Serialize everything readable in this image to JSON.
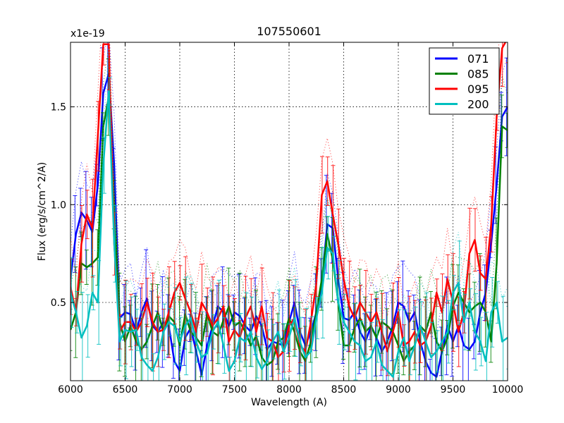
{
  "chart_data": {
    "type": "line",
    "title": "107550601",
    "xlabel": "Wavelength (A)",
    "ylabel": "Flux (erg/s/cm^2/A)",
    "y_scale_label": "x1e-19",
    "xlim": [
      6000,
      10000
    ],
    "ylim": [
      0.1,
      1.83
    ],
    "x_ticks": [
      6000,
      6500,
      7000,
      7500,
      8000,
      8500,
      9000,
      9500,
      10000
    ],
    "x_tick_labels": [
      "6000",
      "6500",
      "7000",
      "7500",
      "8000",
      "8500",
      "9000",
      "9500",
      "10000"
    ],
    "y_ticks": [
      0.5,
      1.0,
      1.5
    ],
    "y_tick_labels": [
      "0.5",
      "1.0",
      "1.5"
    ],
    "grid": true,
    "legend_position": "top-right",
    "x": [
      6000,
      6050,
      6100,
      6150,
      6200,
      6250,
      6300,
      6350,
      6400,
      6450,
      6500,
      6550,
      6600,
      6650,
      6700,
      6750,
      6800,
      6850,
      6900,
      6950,
      7000,
      7050,
      7100,
      7150,
      7200,
      7250,
      7300,
      7350,
      7400,
      7450,
      7500,
      7550,
      7600,
      7650,
      7700,
      7750,
      7800,
      7850,
      7900,
      7950,
      8000,
      8050,
      8100,
      8150,
      8200,
      8250,
      8300,
      8350,
      8400,
      8450,
      8500,
      8550,
      8600,
      8650,
      8700,
      8750,
      8800,
      8850,
      8900,
      8950,
      9000,
      9050,
      9100,
      9150,
      9200,
      9250,
      9300,
      9350,
      9400,
      9450,
      9500,
      9550,
      9600,
      9650,
      9700,
      9750,
      9800,
      9850,
      9900,
      9950,
      10000
    ],
    "series": [
      {
        "name": "071",
        "color": "#0000ff",
        "values": [
          0.62,
          0.85,
          0.96,
          0.92,
          0.86,
          1.1,
          1.57,
          1.67,
          1.2,
          0.42,
          0.45,
          0.44,
          0.35,
          0.45,
          0.52,
          0.38,
          0.35,
          0.4,
          0.38,
          0.2,
          0.15,
          0.32,
          0.37,
          0.25,
          0.13,
          0.28,
          0.38,
          0.48,
          0.45,
          0.38,
          0.45,
          0.43,
          0.38,
          0.35,
          0.43,
          0.38,
          0.26,
          0.3,
          0.29,
          0.28,
          0.4,
          0.5,
          0.35,
          0.28,
          0.35,
          0.45,
          0.6,
          0.9,
          0.88,
          0.62,
          0.42,
          0.41,
          0.45,
          0.35,
          0.3,
          0.38,
          0.32,
          0.25,
          0.3,
          0.38,
          0.5,
          0.48,
          0.4,
          0.45,
          0.3,
          0.2,
          0.14,
          0.12,
          0.25,
          0.38,
          0.3,
          0.38,
          0.28,
          0.26,
          0.3,
          0.45,
          0.55,
          0.8,
          1.1,
          1.45,
          1.5
        ]
      },
      {
        "name": "085",
        "color": "#008000",
        "values": [
          0.36,
          0.45,
          0.7,
          0.68,
          0.7,
          0.73,
          1.4,
          1.55,
          1.0,
          0.4,
          0.3,
          0.38,
          0.3,
          0.26,
          0.3,
          0.38,
          0.45,
          0.35,
          0.43,
          0.4,
          0.28,
          0.44,
          0.35,
          0.32,
          0.28,
          0.44,
          0.35,
          0.33,
          0.41,
          0.48,
          0.38,
          0.4,
          0.35,
          0.28,
          0.33,
          0.22,
          0.18,
          0.2,
          0.3,
          0.32,
          0.42,
          0.35,
          0.25,
          0.2,
          0.3,
          0.45,
          0.62,
          0.85,
          0.72,
          0.5,
          0.28,
          0.28,
          0.37,
          0.42,
          0.35,
          0.38,
          0.32,
          0.4,
          0.38,
          0.35,
          0.28,
          0.2,
          0.25,
          0.28,
          0.38,
          0.35,
          0.45,
          0.3,
          0.25,
          0.32,
          0.48,
          0.55,
          0.5,
          0.45,
          0.48,
          0.5,
          0.45,
          0.3,
          0.7,
          1.4,
          1.38
        ]
      },
      {
        "name": "095",
        "color": "#ff0000",
        "values": [
          0.58,
          0.45,
          0.8,
          0.95,
          0.88,
          1.35,
          1.82,
          1.82,
          0.8,
          0.35,
          0.4,
          0.4,
          0.35,
          0.4,
          0.5,
          0.4,
          0.35,
          0.36,
          0.45,
          0.55,
          0.6,
          0.52,
          0.45,
          0.35,
          0.5,
          0.45,
          0.38,
          0.42,
          0.48,
          0.3,
          0.36,
          0.32,
          0.42,
          0.48,
          0.35,
          0.48,
          0.32,
          0.3,
          0.22,
          0.25,
          0.38,
          0.42,
          0.28,
          0.25,
          0.4,
          0.6,
          1.05,
          1.12,
          0.95,
          0.8,
          0.62,
          0.48,
          0.42,
          0.5,
          0.45,
          0.4,
          0.45,
          0.35,
          0.25,
          0.35,
          0.45,
          0.28,
          0.3,
          0.35,
          0.28,
          0.3,
          0.38,
          0.55,
          0.45,
          0.62,
          0.5,
          0.35,
          0.45,
          0.75,
          0.82,
          0.65,
          0.62,
          0.9,
          1.45,
          1.8,
          1.85
        ]
      },
      {
        "name": "200",
        "color": "#00bfbf",
        "values": [
          0.55,
          0.45,
          0.32,
          0.38,
          0.55,
          0.5,
          1.2,
          1.58,
          0.8,
          0.3,
          0.36,
          0.35,
          0.36,
          0.22,
          0.18,
          0.15,
          0.22,
          0.35,
          0.4,
          0.38,
          0.3,
          0.38,
          0.42,
          0.3,
          0.22,
          0.24,
          0.35,
          0.4,
          0.28,
          0.15,
          0.2,
          0.32,
          0.3,
          0.35,
          0.22,
          0.16,
          0.2,
          0.3,
          0.35,
          0.25,
          0.32,
          0.42,
          0.3,
          0.22,
          0.25,
          0.42,
          0.55,
          0.78,
          0.75,
          0.5,
          0.4,
          0.35,
          0.3,
          0.28,
          0.2,
          0.22,
          0.3,
          0.18,
          0.15,
          0.12,
          0.25,
          0.32,
          0.2,
          0.28,
          0.38,
          0.3,
          0.22,
          0.25,
          0.3,
          0.35,
          0.55,
          0.6,
          0.4,
          0.5,
          0.35,
          0.3,
          0.2,
          0.45,
          0.5,
          0.3,
          0.32
        ]
      }
    ]
  }
}
